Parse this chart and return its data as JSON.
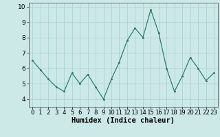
{
  "x": [
    0,
    1,
    2,
    3,
    4,
    5,
    6,
    7,
    8,
    9,
    10,
    11,
    12,
    13,
    14,
    15,
    16,
    17,
    18,
    19,
    20,
    21,
    22,
    23
  ],
  "y": [
    6.5,
    5.9,
    5.3,
    4.8,
    4.5,
    5.7,
    5.0,
    5.6,
    4.8,
    4.0,
    5.3,
    6.4,
    7.8,
    8.6,
    8.0,
    9.8,
    8.3,
    6.0,
    4.5,
    5.5,
    6.7,
    6.0,
    5.2,
    5.7
  ],
  "xlabel": "Humidex (Indice chaleur)",
  "ylim": [
    3.5,
    10.25
  ],
  "xlim": [
    -0.5,
    23.5
  ],
  "yticks": [
    4,
    5,
    6,
    7,
    8,
    9,
    10
  ],
  "xtick_labels": [
    "0",
    "1",
    "2",
    "3",
    "4",
    "5",
    "6",
    "7",
    "8",
    "9",
    "10",
    "11",
    "12",
    "13",
    "14",
    "15",
    "16",
    "17",
    "18",
    "19",
    "20",
    "21",
    "22",
    "23"
  ],
  "line_color": "#2d7d6d",
  "marker_color": "#2d7d6d",
  "bg_color": "#cce9e8",
  "grid_color": "#aad4d2",
  "xlabel_fontsize": 7.5,
  "tick_fontsize": 6.5,
  "linewidth": 0.9,
  "markersize": 2.0
}
